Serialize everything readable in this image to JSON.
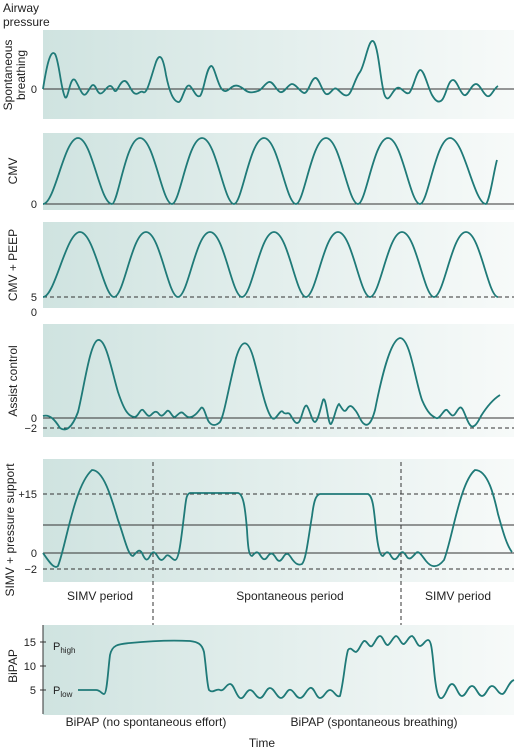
{
  "y_axis_title_line1": "Airway",
  "y_axis_title_line2": "pressure",
  "x_axis_title": "Time",
  "colors": {
    "wave": "#1f7a78",
    "panel_dark": "#cfe3e0",
    "panel_light": "#f7faf9",
    "line": "#333333"
  },
  "panels": [
    {
      "label": "Spontaneous breathing",
      "label_lines": [
        "Spontaneous",
        "breathing"
      ],
      "ticks": [
        "0"
      ]
    },
    {
      "label": "CMV",
      "ticks": [
        "0"
      ]
    },
    {
      "label": "CMV + PEEP",
      "ticks": [
        "5",
        "0"
      ]
    },
    {
      "label": "Assist control",
      "ticks": [
        "0",
        "−2"
      ]
    },
    {
      "label": "SIMV + pressure support",
      "ticks": [
        "+15",
        "0",
        "−2"
      ],
      "periods": [
        "SIMV period",
        "Spontaneous period",
        "SIMV period"
      ]
    },
    {
      "label": "BiPAP",
      "ticks": [
        "15",
        "10",
        "5"
      ],
      "p_high": "P",
      "p_high_sub": "high",
      "p_low": "P",
      "p_low_sub": "low",
      "modes": [
        "BiPAP (no spontaneous effort)",
        "BiPAP (spontaneous breathing)"
      ]
    }
  ]
}
